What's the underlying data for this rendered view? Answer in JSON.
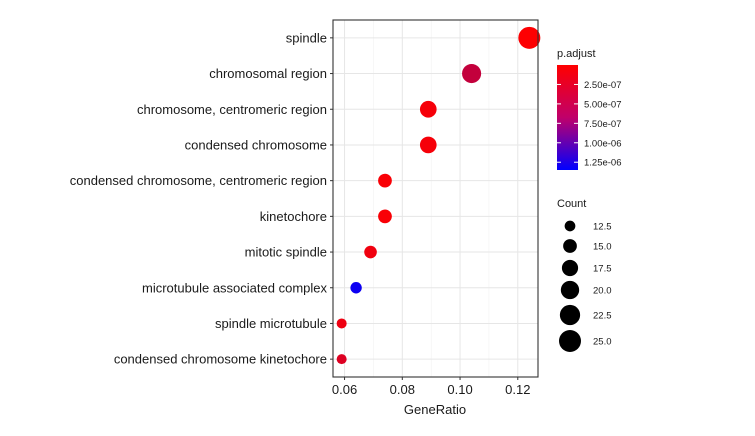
{
  "chart_data": {
    "type": "scatter",
    "subtype": "dot-plot",
    "xlabel": "GeneRatio",
    "ylabel": "",
    "xlim": [
      0.056,
      0.127
    ],
    "x_ticks": [
      0.06,
      0.08,
      0.1,
      0.12
    ],
    "x_tick_labels": [
      "0.06",
      "0.08",
      "0.10",
      "0.12"
    ],
    "grid": true,
    "points": [
      {
        "term": "spindle",
        "gene_ratio": 0.124,
        "count": 25,
        "p_adjust": 1e-08
      },
      {
        "term": "chromosomal region",
        "gene_ratio": 0.104,
        "count": 21,
        "p_adjust": 3.2e-07
      },
      {
        "term": "chromosome, centromeric region",
        "gene_ratio": 0.089,
        "count": 18,
        "p_adjust": 5e-08
      },
      {
        "term": "condensed chromosome",
        "gene_ratio": 0.089,
        "count": 18,
        "p_adjust": 5e-08
      },
      {
        "term": "condensed chromosome, centromeric region",
        "gene_ratio": 0.074,
        "count": 15,
        "p_adjust": 3e-08
      },
      {
        "term": "kinetochore",
        "gene_ratio": 0.074,
        "count": 15,
        "p_adjust": 3e-08
      },
      {
        "term": "mitotic spindle",
        "gene_ratio": 0.069,
        "count": 14,
        "p_adjust": 8e-08
      },
      {
        "term": "microtubule associated complex",
        "gene_ratio": 0.064,
        "count": 13,
        "p_adjust": 1.28e-06
      },
      {
        "term": "spindle microtubule",
        "gene_ratio": 0.059,
        "count": 12,
        "p_adjust": 9e-08
      },
      {
        "term": "condensed chromosome kinetochore",
        "gene_ratio": 0.059,
        "count": 12,
        "p_adjust": 1.8e-07
      }
    ],
    "color_legend": {
      "title": "p.adjust",
      "min": 0.0,
      "max": 1.35e-06,
      "ticks": [
        2.5e-07,
        5e-07,
        7.5e-07,
        1e-06,
        1.25e-06
      ],
      "tick_labels": [
        "2.50e-07",
        "5.00e-07",
        "7.50e-07",
        "1.00e-06",
        "1.25e-06"
      ],
      "low_color": "#ff0000",
      "high_color": "#0000ff"
    },
    "size_legend": {
      "title": "Count",
      "values": [
        12.5,
        15.0,
        17.5,
        20.0,
        22.5,
        25.0
      ],
      "labels": [
        "12.5",
        "15.0",
        "17.5",
        "20.0",
        "22.5",
        "25.0"
      ],
      "count_min": 12,
      "count_max": 25
    }
  }
}
